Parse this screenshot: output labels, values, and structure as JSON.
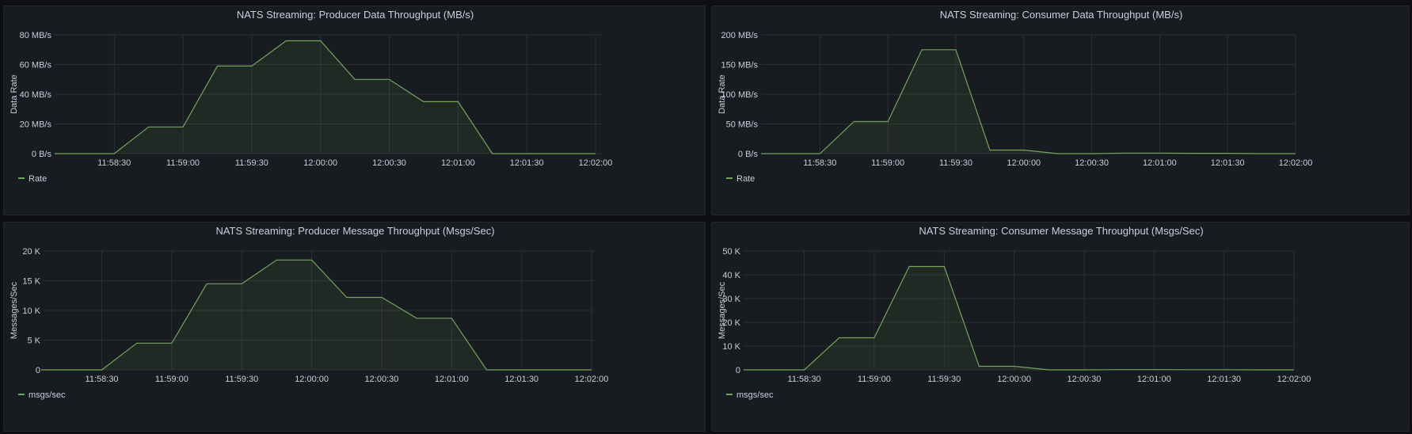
{
  "chart_data": [
    {
      "type": "area",
      "title": "NATS Streaming: Producer Data Throughput (MB/s)",
      "ylabel": "Data Rate",
      "x_ticks": [
        "11:58:30",
        "11:59:00",
        "11:59:30",
        "12:00:00",
        "12:00:30",
        "12:01:00",
        "12:01:30",
        "12:02:00"
      ],
      "y_ticks": [
        "0 B/s",
        "20 MB/s",
        "40 MB/s",
        "60 MB/s",
        "80 MB/s"
      ],
      "xlim": [
        "11:58:04",
        "11:58:02"
      ],
      "ylim": [
        0,
        80
      ],
      "grid": true,
      "legend_placement": "bottom-left",
      "series": [
        {
          "name": "Rate",
          "x": [
            "11:58:04",
            "11:58:30",
            "11:58:45",
            "11:59:00",
            "11:59:15",
            "11:59:30",
            "11:59:45",
            "12:00:00",
            "12:00:15",
            "12:00:30",
            "12:00:45",
            "12:01:00",
            "12:01:15",
            "12:01:30",
            "12:01:45",
            "12:02:00"
          ],
          "values": [
            0,
            0,
            18,
            18,
            59,
            59,
            76,
            76,
            50,
            50,
            35,
            35,
            0,
            0,
            0,
            0
          ]
        }
      ]
    },
    {
      "type": "area",
      "title": "NATS Streaming: Consumer Data Throughput (MB/s)",
      "ylabel": "Data Rate",
      "x_ticks": [
        "11:58:30",
        "11:59:00",
        "11:59:30",
        "12:00:00",
        "12:00:30",
        "12:01:00",
        "12:01:30",
        "12:02:00"
      ],
      "y_ticks": [
        "0 B/s",
        "50 MB/s",
        "100 MB/s",
        "150 MB/s",
        "200 MB/s"
      ],
      "ylim": [
        0,
        200
      ],
      "grid": true,
      "legend_placement": "bottom-left",
      "series": [
        {
          "name": "Rate",
          "x": [
            "11:58:04",
            "11:58:30",
            "11:58:45",
            "11:59:00",
            "11:59:15",
            "11:59:30",
            "11:59:45",
            "12:00:00",
            "12:00:15",
            "12:00:30",
            "12:00:45",
            "12:01:00",
            "12:01:15",
            "12:01:30",
            "12:01:45",
            "12:02:00"
          ],
          "values": [
            0,
            0,
            54,
            54,
            175,
            175,
            6,
            6,
            0,
            0,
            1,
            1,
            0.5,
            0.5,
            0,
            0
          ]
        }
      ]
    },
    {
      "type": "area",
      "title": "NATS Streaming: Producer Message Throughput (Msgs/Sec)",
      "ylabel": "Messages/Sec",
      "x_ticks": [
        "11:58:30",
        "11:59:00",
        "11:59:30",
        "12:00:00",
        "12:00:30",
        "12:01:00",
        "12:01:30",
        "12:02:00"
      ],
      "y_ticks": [
        "0",
        "5 K",
        "10 K",
        "15 K",
        "20 K"
      ],
      "ylim": [
        0,
        20000
      ],
      "grid": true,
      "legend_placement": "bottom-left",
      "series": [
        {
          "name": "msgs/sec",
          "x": [
            "11:58:04",
            "11:58:30",
            "11:58:45",
            "11:59:00",
            "11:59:15",
            "11:59:30",
            "11:59:45",
            "12:00:00",
            "12:00:15",
            "12:00:30",
            "12:00:45",
            "12:01:00",
            "12:01:15",
            "12:01:30",
            "12:01:45",
            "12:02:00"
          ],
          "values": [
            0,
            0,
            4500,
            4500,
            14500,
            14500,
            18500,
            18500,
            12200,
            12200,
            8700,
            8700,
            0,
            0,
            0,
            0
          ]
        }
      ]
    },
    {
      "type": "area",
      "title": "NATS Streaming: Consumer Message Throughput (Msgs/Sec)",
      "ylabel": "Messages/Sec",
      "x_ticks": [
        "11:58:30",
        "11:59:00",
        "11:59:30",
        "12:00:00",
        "12:00:30",
        "12:01:00",
        "12:01:30",
        "12:02:00"
      ],
      "y_ticks": [
        "0",
        "10 K",
        "20 K",
        "30 K",
        "40 K",
        "50 K"
      ],
      "ylim": [
        0,
        50000
      ],
      "grid": true,
      "legend_placement": "bottom-left",
      "series": [
        {
          "name": "msgs/sec",
          "x": [
            "11:58:04",
            "11:58:30",
            "11:58:45",
            "11:59:00",
            "11:59:15",
            "11:59:30",
            "11:59:45",
            "12:00:00",
            "12:00:15",
            "12:00:30",
            "12:00:45",
            "12:01:00",
            "12:01:15",
            "12:01:30",
            "12:01:45",
            "12:02:00"
          ],
          "values": [
            0,
            0,
            13500,
            13500,
            43500,
            43500,
            1500,
            1500,
            0,
            0,
            100,
            100,
            50,
            50,
            0,
            0
          ]
        }
      ]
    }
  ]
}
